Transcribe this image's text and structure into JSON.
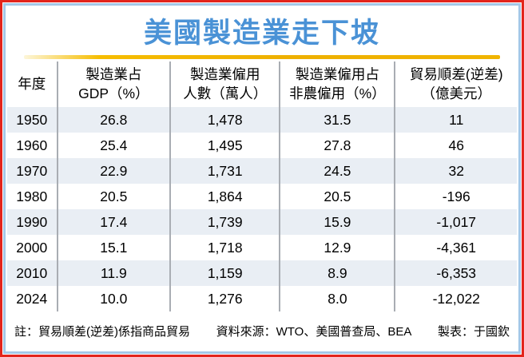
{
  "title": "美國製造業走下坡",
  "colors": {
    "outer_border_red": "#e3251c",
    "inner_border_blue": "#a4c8e8",
    "title_blue": "#4a92d6",
    "gold_divider": "#f0b400",
    "row_stripe": "#e9eef4",
    "column_rule_gray": "#a9adb3"
  },
  "table": {
    "headers": [
      "年度",
      "製造業占\nGDP（%）",
      "製造業僱用\n人數（萬人）",
      "製造業僱用占\n非農僱用（%）",
      "貿易順差(逆差)\n（億美元）"
    ],
    "rows": [
      [
        "1950",
        "26.8",
        "1,478",
        "31.5",
        "11"
      ],
      [
        "1960",
        "25.4",
        "1,495",
        "27.8",
        "46"
      ],
      [
        "1970",
        "22.9",
        "1,731",
        "24.5",
        "32"
      ],
      [
        "1980",
        "20.5",
        "1,864",
        "20.5",
        "-196"
      ],
      [
        "1990",
        "17.4",
        "1,739",
        "15.9",
        "-1,017"
      ],
      [
        "2000",
        "15.1",
        "1,718",
        "12.9",
        "-4,361"
      ],
      [
        "2010",
        "11.9",
        "1,159",
        "8.9",
        "-6,353"
      ],
      [
        "2024",
        "10.0",
        "1,276",
        "8.0",
        "-12,022"
      ]
    ]
  },
  "footer": {
    "note": "註：貿易順差(逆差)係指商品貿易",
    "source": "資料來源：WTO、美國普查局、BEA",
    "credit": "製表：于國欽"
  },
  "chart_data": {
    "type": "table",
    "title": "美國製造業走下坡",
    "columns": [
      "年度",
      "製造業占GDP（%）",
      "製造業僱用人數（萬人）",
      "製造業僱用占非農僱用（%）",
      "貿易順差(逆差)（億美元）"
    ],
    "years": [
      1950,
      1960,
      1970,
      1980,
      1990,
      2000,
      2010,
      2024
    ],
    "series": [
      {
        "name": "製造業占GDP（%）",
        "values": [
          26.8,
          25.4,
          22.9,
          20.5,
          17.4,
          15.1,
          11.9,
          10.0
        ]
      },
      {
        "name": "製造業僱用人數（萬人）",
        "values": [
          1478,
          1495,
          1731,
          1864,
          1739,
          1718,
          1159,
          1276
        ]
      },
      {
        "name": "製造業僱用占非農僱用（%）",
        "values": [
          31.5,
          27.8,
          24.5,
          20.5,
          15.9,
          12.9,
          8.9,
          8.0
        ]
      },
      {
        "name": "貿易順差(逆差)（億美元）",
        "values": [
          11,
          46,
          32,
          -196,
          -1017,
          -4361,
          -6353,
          -12022
        ]
      }
    ],
    "footnote": "註：貿易順差(逆差)係指商品貿易",
    "source": "資料來源：WTO、美國普查局、BEA",
    "credit": "製表：于國欽"
  }
}
